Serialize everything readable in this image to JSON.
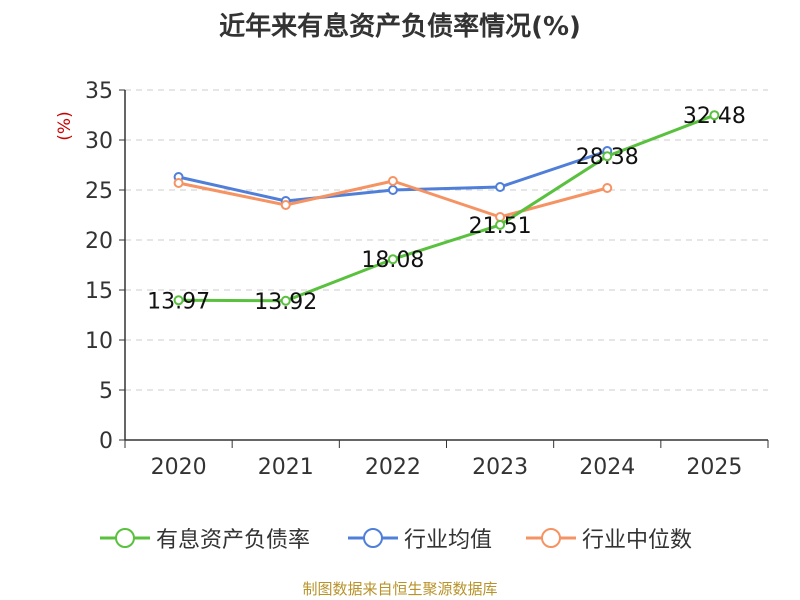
{
  "title": "近年来有息资产负债率情况(%)",
  "footer": "制图数据来自恒生聚源数据库",
  "colors": {
    "debt": "#5ac13f",
    "avg": "#4f7fd8",
    "median": "#f59363",
    "axis": "#333333",
    "grid": "#cccccc",
    "unit": "#cc0000"
  },
  "chart_data": {
    "type": "line",
    "title": "近年来有息资产负债率情况(%)",
    "xlabel": "",
    "ylabel": "(%)",
    "categories": [
      "2020",
      "2021",
      "2022",
      "2023",
      "2024",
      "2025"
    ],
    "ylim": [
      0,
      35
    ],
    "yticks": [
      "0",
      "5",
      "10",
      "15",
      "20",
      "25",
      "30",
      "35"
    ],
    "grid": true,
    "legend": "bottom",
    "series": [
      {
        "name": "有息资产负债率",
        "color": "#5ac13f",
        "values": [
          13.97,
          13.92,
          18.08,
          21.51,
          28.38,
          32.48
        ],
        "labels": [
          "13.97",
          "13.92",
          "18.08",
          "21.51",
          "28.38",
          "32.48"
        ]
      },
      {
        "name": "行业均值",
        "color": "#4f7fd8",
        "values": [
          26.3,
          23.9,
          25.0,
          25.3,
          28.9,
          null
        ]
      },
      {
        "name": "行业中位数",
        "color": "#f59363",
        "values": [
          25.7,
          23.5,
          25.9,
          22.3,
          25.2,
          null
        ]
      }
    ]
  }
}
